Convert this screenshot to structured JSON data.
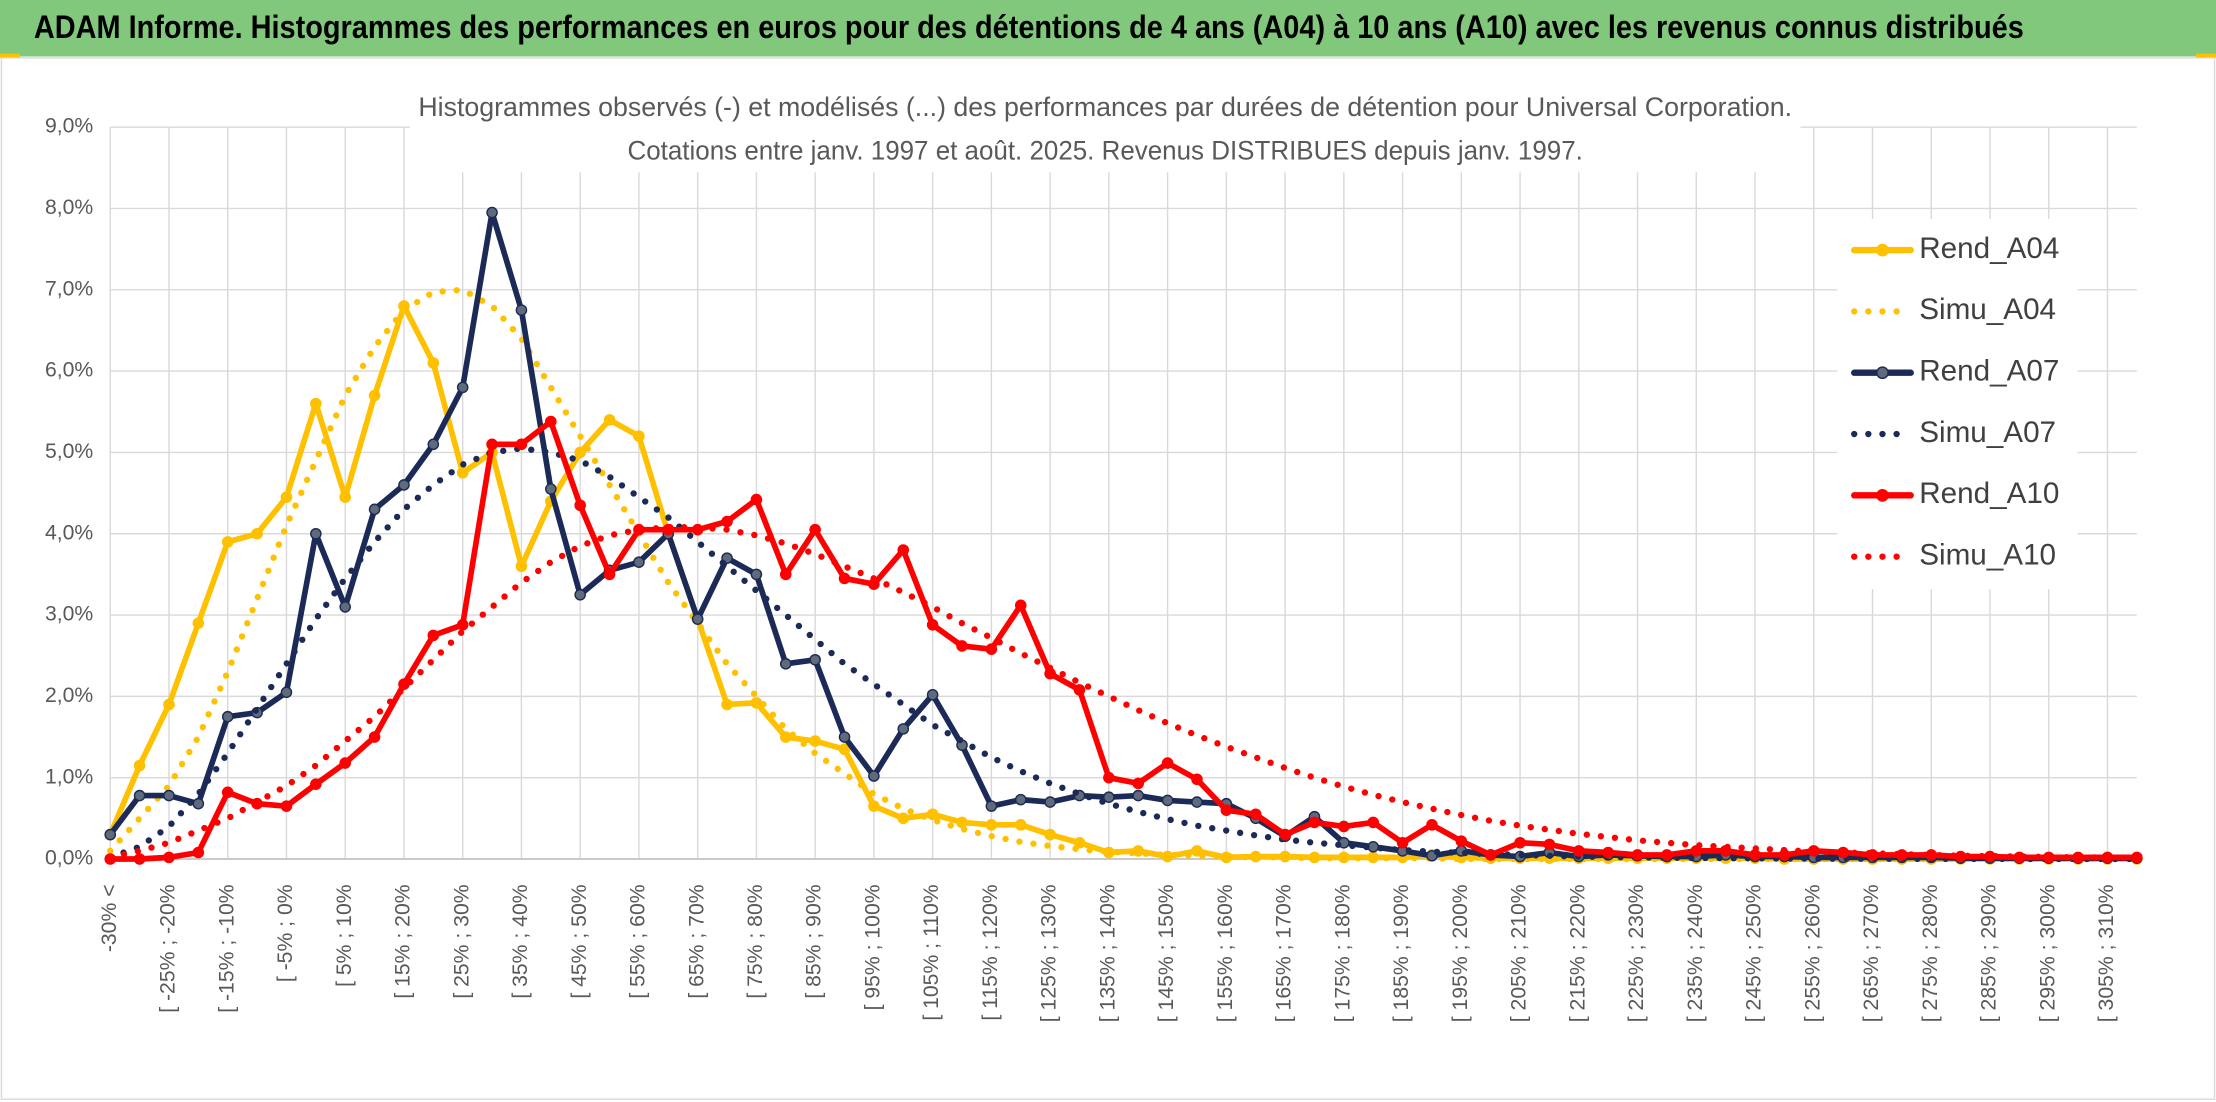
{
  "header": {
    "title": "ADAM Informe. Histogrammes des performances en euros pour des détentions de 4 ans (A04) à 10 ans (A10) avec les revenus connus distribués"
  },
  "chart_data": {
    "type": "line",
    "title": "Histogrammes observés (-) et modélisés (...) des performances par durées de détention pour Universal Corporation.",
    "subtitle": "Cotations entre janv. 1997 et août. 2025. Revenus DISTRIBUES depuis janv. 1997.",
    "categories": [
      "-30% <",
      null,
      "[ -25% ; -20%",
      null,
      "[ -15% ; -10%",
      null,
      "[ -5% ; 0%",
      null,
      "[ 5% ; 10%",
      null,
      "[ 15% ; 20%",
      null,
      "[ 25% ; 30%",
      null,
      "[ 35% ; 40%",
      null,
      "[ 45% ; 50%",
      null,
      "[ 55% ; 60%",
      null,
      "[ 65% ; 70%",
      null,
      "[ 75% ; 80%",
      null,
      "[ 85% ; 90%",
      null,
      "[ 95% ; 100%",
      null,
      "[ 105% ; 110%",
      null,
      "[ 115% ; 120%",
      null,
      "[ 125% ; 130%",
      null,
      "[ 135% ; 140%",
      null,
      "[ 145% ; 150%",
      null,
      "[ 155% ; 160%",
      null,
      "[ 165% ; 170%",
      null,
      "[ 175% ; 180%",
      null,
      "[ 185% ; 190%",
      null,
      "[ 195% ; 200%",
      null,
      "[ 205% ; 210%",
      null,
      "[ 215% ; 220%",
      null,
      "[ 225% ; 230%",
      null,
      "[ 235% ; 240%",
      null,
      "[ 245% ; 250%",
      null,
      "[ 255% ; 260%",
      null,
      "[ 265% ; 270%",
      null,
      "[ 275% ; 280%",
      null,
      "[ 285% ; 290%",
      null,
      "[ 295% ; 300%",
      null,
      "[ 305% ; 310%",
      null
    ],
    "ylim": [
      0,
      9
    ],
    "yticks": [
      {
        "value": 0,
        "label": "0,0%"
      },
      {
        "value": 1,
        "label": "1,0%"
      },
      {
        "value": 2,
        "label": "2,0%"
      },
      {
        "value": 3,
        "label": "3,0%"
      },
      {
        "value": 4,
        "label": "4,0%"
      },
      {
        "value": 5,
        "label": "5,0%"
      },
      {
        "value": 6,
        "label": "6,0%"
      },
      {
        "value": 7,
        "label": "7,0%"
      },
      {
        "value": 8,
        "label": "8,0%"
      },
      {
        "value": 9,
        "label": "9,0%"
      }
    ],
    "grid": true,
    "legend": "right",
    "series": [
      {
        "name": "Rend_A04",
        "color": "#FFC000",
        "style": "solid",
        "marker_color": "#FFC000",
        "values": [
          0.3,
          1.15,
          1.9,
          2.9,
          3.9,
          4.0,
          4.45,
          5.6,
          4.45,
          5.7,
          6.8,
          6.1,
          4.75,
          5.0,
          3.6,
          4.4,
          5.0,
          5.4,
          5.2,
          4.0,
          2.95,
          1.9,
          1.92,
          1.5,
          1.45,
          1.35,
          0.65,
          0.5,
          0.55,
          0.45,
          0.42,
          0.42,
          0.3,
          0.2,
          0.08,
          0.1,
          0.03,
          0.1,
          0.02,
          0.03,
          0.03,
          0.02,
          0.02,
          0.02,
          0.02,
          0.05,
          0.02,
          0.01,
          0.01,
          0.01,
          0.01,
          0.01,
          0.01,
          0.01,
          0.01,
          0.01,
          0.01,
          0,
          0,
          0,
          0,
          0,
          0,
          0,
          0,
          0,
          0,
          0,
          0,
          0
        ]
      },
      {
        "name": "Simu_A04",
        "color": "#FFC000",
        "style": "dotted",
        "values": [
          0.1,
          0.5,
          0.9,
          1.5,
          2.3,
          3.2,
          4.1,
          4.9,
          5.7,
          6.3,
          6.75,
          6.97,
          7.0,
          6.8,
          6.4,
          5.8,
          5.2,
          4.6,
          4.0,
          3.4,
          2.9,
          2.4,
          2.0,
          1.6,
          1.3,
          1.05,
          0.8,
          0.62,
          0.48,
          0.37,
          0.28,
          0.21,
          0.16,
          0.12,
          0.09,
          0.07,
          0.05,
          0.04,
          0.03,
          0.02,
          0.02,
          0.01,
          0.01,
          0.01,
          0.01,
          0.01,
          0,
          0,
          0,
          0,
          0,
          0,
          0,
          0,
          0,
          0,
          0,
          0,
          0,
          0,
          0,
          0,
          0,
          0,
          0,
          0,
          0,
          0,
          0,
          0
        ]
      },
      {
        "name": "Rend_A07",
        "color": "#1B2A56",
        "style": "solid",
        "marker_color": "#5F6B7A",
        "values": [
          0.3,
          0.78,
          0.78,
          0.68,
          1.75,
          1.8,
          2.05,
          4.0,
          3.1,
          4.3,
          4.6,
          5.1,
          5.8,
          7.95,
          6.75,
          4.55,
          3.25,
          3.55,
          3.65,
          4.0,
          2.95,
          3.7,
          3.5,
          2.4,
          2.45,
          1.5,
          1.02,
          1.6,
          2.02,
          1.4,
          0.65,
          0.73,
          0.7,
          0.78,
          0.76,
          0.78,
          0.72,
          0.7,
          0.68,
          0.5,
          0.28,
          0.52,
          0.2,
          0.15,
          0.1,
          0.04,
          0.1,
          0.05,
          0.03,
          0.08,
          0.03,
          0.05,
          0.04,
          0.03,
          0.03,
          0.05,
          0.03,
          0.03,
          0.02,
          0.02,
          0.02,
          0.02,
          0.02,
          0.01,
          0.01,
          0.01,
          0.01,
          0.01,
          0.01,
          0.01
        ]
      },
      {
        "name": "Simu_A07",
        "color": "#1B2A56",
        "style": "dotted",
        "values": [
          0.02,
          0.15,
          0.4,
          0.8,
          1.3,
          1.85,
          2.4,
          2.95,
          3.45,
          3.9,
          4.3,
          4.6,
          4.85,
          5.0,
          5.05,
          5.0,
          4.9,
          4.7,
          4.45,
          4.2,
          3.9,
          3.6,
          3.3,
          3.0,
          2.7,
          2.4,
          2.15,
          1.9,
          1.65,
          1.45,
          1.25,
          1.08,
          0.93,
          0.8,
          0.68,
          0.58,
          0.49,
          0.41,
          0.35,
          0.29,
          0.24,
          0.2,
          0.17,
          0.14,
          0.11,
          0.09,
          0.075,
          0.06,
          0.05,
          0.04,
          0.03,
          0.025,
          0.02,
          0.016,
          0.013,
          0.01,
          0.008,
          0.006,
          0.005,
          0.004,
          0.003,
          0.002,
          0.002,
          0.001,
          0.001,
          0.001,
          0,
          0,
          0,
          0
        ]
      },
      {
        "name": "Rend_A10",
        "color": "#FF0000",
        "style": "solid",
        "marker_color": "#FF0000",
        "values": [
          0,
          0,
          0.02,
          0.08,
          0.82,
          0.68,
          0.65,
          0.92,
          1.18,
          1.5,
          2.15,
          2.75,
          2.88,
          5.1,
          5.1,
          5.38,
          4.35,
          3.5,
          4.05,
          4.05,
          4.05,
          4.15,
          4.42,
          3.5,
          4.05,
          3.45,
          3.38,
          3.8,
          2.88,
          2.62,
          2.58,
          3.12,
          2.28,
          2.08,
          1.0,
          0.93,
          1.18,
          0.98,
          0.6,
          0.55,
          0.3,
          0.45,
          0.4,
          0.45,
          0.2,
          0.42,
          0.22,
          0.05,
          0.2,
          0.18,
          0.1,
          0.08,
          0.05,
          0.05,
          0.1,
          0.1,
          0.05,
          0.05,
          0.1,
          0.08,
          0.05,
          0.05,
          0.05,
          0.03,
          0.03,
          0.02,
          0.02,
          0.02,
          0.02,
          0.02
        ]
      },
      {
        "name": "Simu_A10",
        "color": "#FF0000",
        "style": "dotted",
        "values": [
          0.02,
          0.1,
          0.2,
          0.35,
          0.5,
          0.7,
          0.9,
          1.15,
          1.45,
          1.75,
          2.1,
          2.45,
          2.8,
          3.1,
          3.4,
          3.65,
          3.85,
          3.98,
          4.05,
          4.08,
          4.08,
          4.05,
          3.98,
          3.88,
          3.75,
          3.6,
          3.45,
          3.28,
          3.1,
          2.9,
          2.72,
          2.53,
          2.35,
          2.17,
          2.0,
          1.83,
          1.67,
          1.52,
          1.38,
          1.25,
          1.12,
          1.0,
          0.89,
          0.79,
          0.7,
          0.62,
          0.54,
          0.47,
          0.41,
          0.36,
          0.31,
          0.27,
          0.23,
          0.2,
          0.17,
          0.15,
          0.13,
          0.11,
          0.09,
          0.08,
          0.07,
          0.06,
          0.05,
          0.04,
          0.035,
          0.03,
          0.025,
          0.02,
          0.018,
          0.015
        ]
      }
    ]
  }
}
